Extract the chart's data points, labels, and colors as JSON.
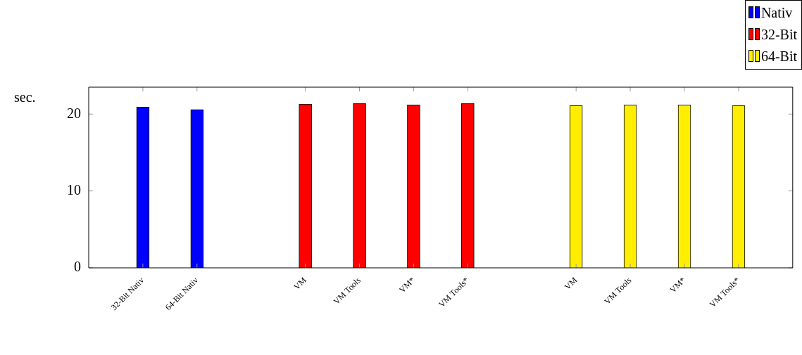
{
  "chart_data": {
    "type": "bar",
    "ylabel": "sec.",
    "categories": [
      null,
      "32-Bit Nativ",
      "64-Bit Nativ",
      null,
      "VM",
      "VM Tools",
      "VM*",
      "VM Tools*",
      null,
      "VM",
      "VM Tools",
      "VM*",
      "VM Tools*",
      null
    ],
    "series": [
      {
        "name": "Nativ",
        "color": "#0000ff",
        "values": [
          null,
          20.9,
          20.6,
          null,
          null,
          null,
          null,
          null,
          null,
          null,
          null,
          null,
          null,
          null
        ]
      },
      {
        "name": "32-Bit",
        "color": "#ff0000",
        "values": [
          null,
          null,
          null,
          null,
          21.3,
          21.4,
          21.2,
          21.4,
          null,
          null,
          null,
          null,
          null,
          null
        ]
      },
      {
        "name": "64-Bit",
        "color": "#ffee00",
        "values": [
          null,
          null,
          null,
          null,
          null,
          null,
          null,
          null,
          null,
          21.1,
          21.2,
          21.2,
          21.1,
          null
        ]
      }
    ],
    "ylim": [
      0,
      23.5
    ],
    "yticks": [
      0,
      10,
      20
    ],
    "legend": "top right"
  }
}
